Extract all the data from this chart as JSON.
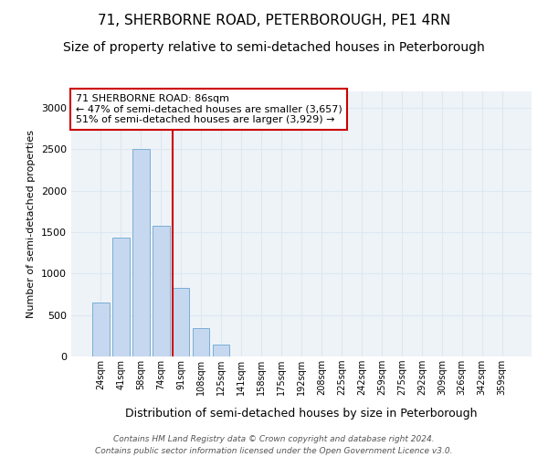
{
  "title": "71, SHERBORNE ROAD, PETERBOROUGH, PE1 4RN",
  "subtitle": "Size of property relative to semi-detached houses in Peterborough",
  "xlabel": "Distribution of semi-detached houses by size in Peterborough",
  "ylabel": "Number of semi-detached properties",
  "footnote": "Contains HM Land Registry data © Crown copyright and database right 2024.\nContains public sector information licensed under the Open Government Licence v3.0.",
  "bar_labels": [
    "24sqm",
    "41sqm",
    "58sqm",
    "74sqm",
    "91sqm",
    "108sqm",
    "125sqm",
    "141sqm",
    "158sqm",
    "175sqm",
    "192sqm",
    "208sqm",
    "225sqm",
    "242sqm",
    "259sqm",
    "275sqm",
    "292sqm",
    "309sqm",
    "326sqm",
    "342sqm",
    "359sqm"
  ],
  "bar_values": [
    650,
    1440,
    2500,
    1580,
    830,
    340,
    140,
    0,
    0,
    0,
    0,
    0,
    0,
    0,
    0,
    0,
    0,
    0,
    0,
    0,
    0
  ],
  "bar_color": "#c5d8f0",
  "bar_edge_color": "#7aaed6",
  "vline_color": "#cc0000",
  "annotation_text": "71 SHERBORNE ROAD: 86sqm\n← 47% of semi-detached houses are smaller (3,657)\n51% of semi-detached houses are larger (3,929) →",
  "annotation_box_color": "#ffffff",
  "annotation_box_edge": "#cc0000",
  "ylim": [
    0,
    3200
  ],
  "yticks": [
    0,
    500,
    1000,
    1500,
    2000,
    2500,
    3000
  ],
  "grid_color": "#dde8f0",
  "bg_color": "#eef3f8",
  "title_fontsize": 11,
  "subtitle_fontsize": 10,
  "xlabel_fontsize": 9,
  "ylabel_fontsize": 8,
  "tick_fontsize": 8,
  "xtick_fontsize": 7,
  "footnote_fontsize": 6.5,
  "annotation_fontsize": 8
}
